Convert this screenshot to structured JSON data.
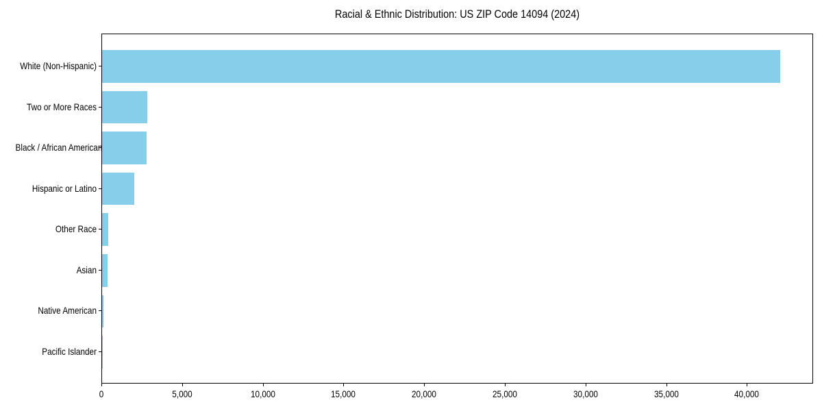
{
  "page": {
    "background": "#ffffff"
  },
  "chart_data": {
    "type": "bar",
    "orientation": "horizontal",
    "title": "Racial & Ethnic Distribution: US ZIP Code 14094 (2024)",
    "categories": [
      "White (Non-Hispanic)",
      "Two or More Races",
      "Black / African American",
      "Hispanic or Latino",
      "Other Race",
      "Asian",
      "Native American",
      "Pacific Islander"
    ],
    "values": [
      42000,
      2800,
      2750,
      2000,
      380,
      330,
      90,
      20
    ],
    "xlabel": "",
    "ylabel": "",
    "xlim": [
      0,
      44100
    ],
    "x_ticks": [
      {
        "value": 0,
        "label": "0"
      },
      {
        "value": 5000,
        "label": "5,000"
      },
      {
        "value": 10000,
        "label": "10,000"
      },
      {
        "value": 15000,
        "label": "15,000"
      },
      {
        "value": 20000,
        "label": "20,000"
      },
      {
        "value": 25000,
        "label": "25,000"
      },
      {
        "value": 30000,
        "label": "30,000"
      },
      {
        "value": 35000,
        "label": "35,000"
      },
      {
        "value": 40000,
        "label": "40,000"
      }
    ],
    "bar_color": "#87CEEB",
    "text_color": "#000000",
    "frame_color": "#000000",
    "grid": false,
    "legend": null,
    "frame": true
  }
}
